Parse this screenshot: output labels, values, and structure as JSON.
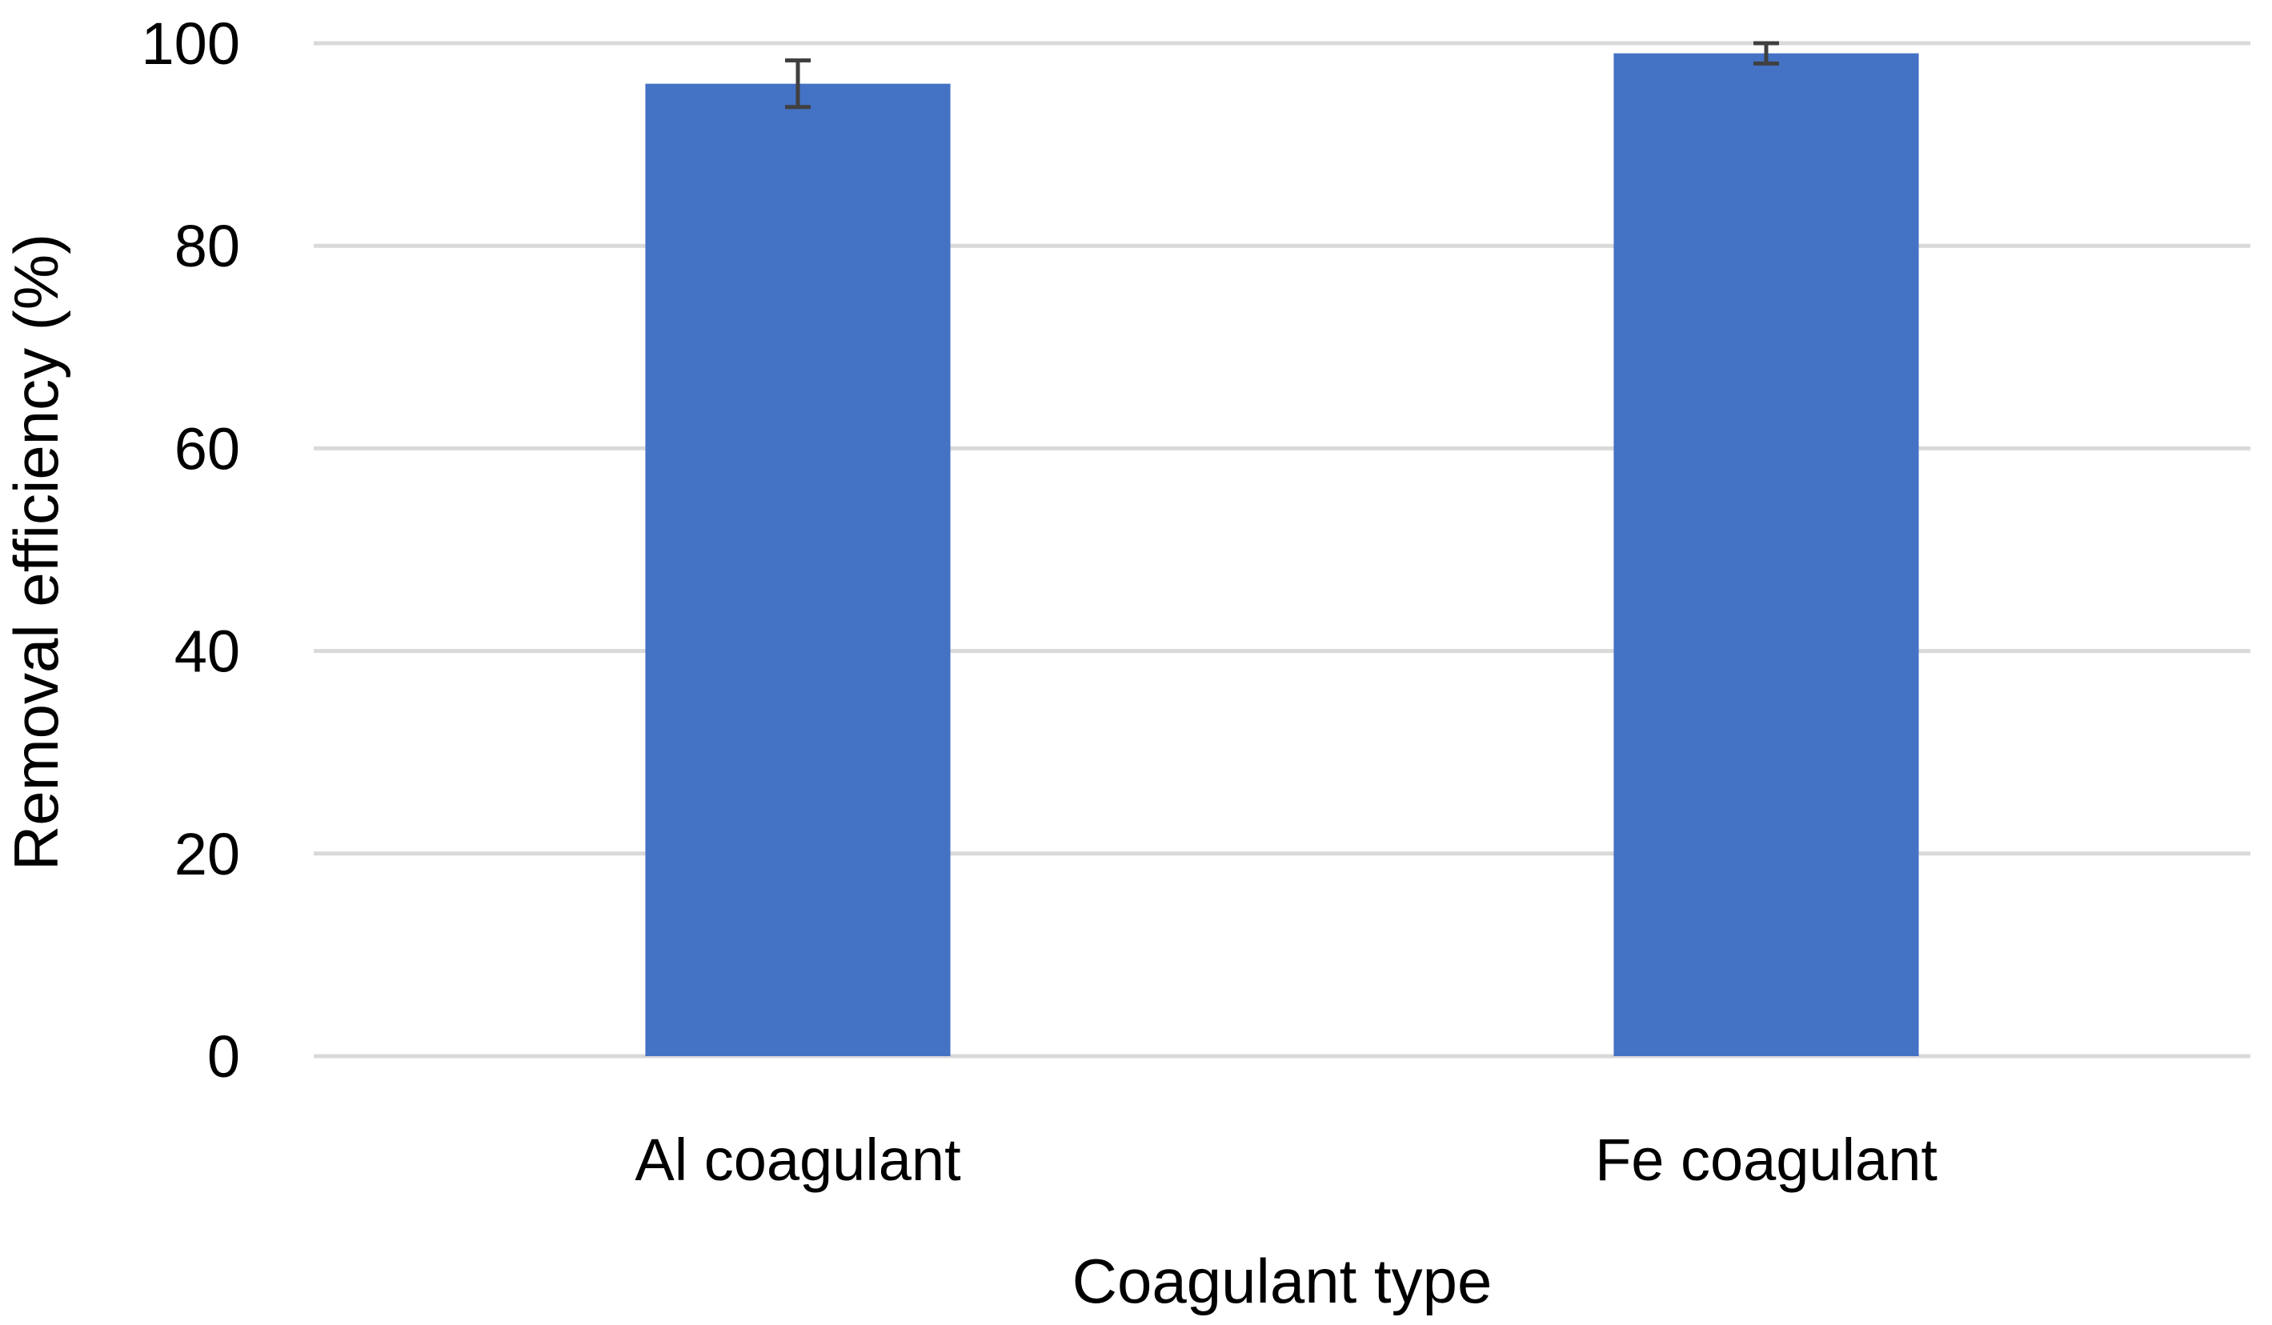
{
  "chart_data": {
    "type": "bar",
    "categories": [
      "Al coagulant",
      "Fe coagulant"
    ],
    "values": [
      96,
      99
    ],
    "error": [
      2.3,
      1.0
    ],
    "title": "",
    "xlabel": "Coagulant type",
    "ylabel": "Removal efficiency (%)",
    "ylim": [
      0,
      100
    ],
    "yticks": [
      0,
      20,
      40,
      60,
      80,
      100
    ],
    "grid": true,
    "legend": "none",
    "colors": {
      "bar": "#4472c4",
      "error_bar": "#404040",
      "grid": "#d9d9d9",
      "text": "#000000"
    }
  }
}
